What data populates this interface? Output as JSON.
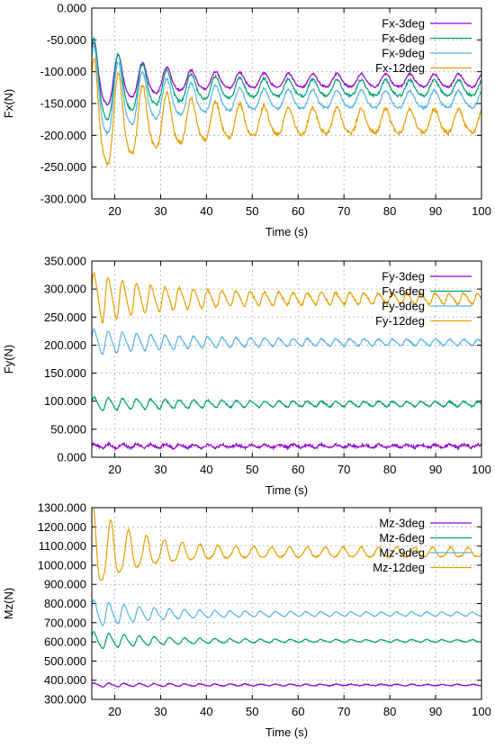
{
  "chart_data": [
    {
      "type": "line",
      "xlabel": "Time (s)",
      "ylabel": "Fx(N)",
      "xlim": [
        15,
        100
      ],
      "ylim": [
        -300,
        0
      ],
      "xticks": [
        20,
        30,
        40,
        50,
        60,
        70,
        80,
        90,
        100
      ],
      "yticks": [
        0,
        -50,
        -100,
        -150,
        -200,
        -250,
        -300
      ],
      "ytick_labels": [
        "0.000",
        "-50.000",
        "-100.000",
        "-150.000",
        "-200.000",
        "-250.000",
        "-300.000"
      ],
      "grid": true,
      "legend_position": "top-right",
      "series": [
        {
          "name": "Fx-3deg",
          "color": "#9400d3",
          "signal": {
            "mean": -115,
            "t0": 15,
            "t_settle": 48,
            "period": 5.3,
            "amp_start": 55,
            "amp_end": 10,
            "decay": 10,
            "phase": 0.9,
            "noise": 1.5
          }
        },
        {
          "name": "Fx-6deg",
          "color": "#009e73",
          "signal": {
            "mean": -127,
            "t0": 15,
            "t_settle": 48,
            "period": 5.3,
            "amp_start": 70,
            "amp_end": 12,
            "decay": 11,
            "phase": 0.9,
            "noise": 2
          }
        },
        {
          "name": "Fx-9deg",
          "color": "#56b4e9",
          "signal": {
            "mean": -145,
            "t0": 15,
            "t_settle": 48,
            "period": 5.3,
            "amp_start": 75,
            "amp_end": 13,
            "decay": 12,
            "phase": 0.9,
            "noise": 2
          }
        },
        {
          "name": "Fx-12deg",
          "color": "#e69f00",
          "signal": {
            "mean": -180,
            "t0": 15,
            "t_settle": 48,
            "period": 5.3,
            "amp_start": 90,
            "amp_end": 18,
            "decay": 14,
            "phase": 0.9,
            "noise": 3
          }
        }
      ]
    },
    {
      "type": "line",
      "xlabel": "Time (s)",
      "ylabel": "Fy(N)",
      "xlim": [
        15,
        100
      ],
      "ylim": [
        0,
        350
      ],
      "xticks": [
        20,
        30,
        40,
        50,
        60,
        70,
        80,
        90,
        100
      ],
      "yticks": [
        350,
        300,
        250,
        200,
        150,
        100,
        50,
        0
      ],
      "ytick_labels": [
        "350.000",
        "300.000",
        "250.000",
        "200.000",
        "150.000",
        "100.000",
        "50.000",
        "0.000"
      ],
      "grid": true,
      "legend_position": "top-right",
      "series": [
        {
          "name": "Fy-3deg",
          "color": "#9400d3",
          "signal": {
            "mean": 20,
            "t0": 15,
            "t_settle": 48,
            "period": 3.1,
            "amp_start": 4,
            "amp_end": 2,
            "decay": 30,
            "phase": 0.3,
            "noise": 2.5
          }
        },
        {
          "name": "Fy-6deg",
          "color": "#009e73",
          "signal": {
            "mean": 95,
            "t0": 15,
            "t_settle": 48,
            "period": 3.1,
            "amp_start": 12,
            "amp_end": 4,
            "decay": 20,
            "phase": 0.3,
            "noise": 1.5
          }
        },
        {
          "name": "Fy-9deg",
          "color": "#56b4e9",
          "signal": {
            "mean": 205,
            "t0": 15,
            "t_settle": 48,
            "period": 3.1,
            "amp_start": 22,
            "amp_end": 5,
            "decay": 18,
            "phase": 0.3,
            "noise": 1.5
          }
        },
        {
          "name": "Fy-12deg",
          "color": "#e69f00",
          "signal": {
            "mean": 283,
            "t0": 15,
            "t_settle": 48,
            "period": 3.1,
            "amp_start": 45,
            "amp_end": 9,
            "decay": 14,
            "phase": 0.3,
            "noise": 2
          }
        }
      ]
    },
    {
      "type": "line",
      "xlabel": "Time (s)",
      "ylabel": "Mz(N)",
      "xlim": [
        15,
        100
      ],
      "ylim": [
        300,
        1300
      ],
      "xticks": [
        20,
        30,
        40,
        50,
        60,
        70,
        80,
        90,
        100
      ],
      "yticks": [
        1300,
        1200,
        1100,
        1000,
        900,
        800,
        700,
        600,
        500,
        400,
        300
      ],
      "ytick_labels": [
        "1300.000",
        "1200.000",
        "1100.000",
        "1000.000",
        "900.000",
        "800.000",
        "700.000",
        "600.000",
        "500.000",
        "400.000",
        "300.000"
      ],
      "grid": true,
      "legend_position": "top-right",
      "series": [
        {
          "name": "Mz-3deg",
          "color": "#9400d3",
          "signal": {
            "mean": 375,
            "t0": 15,
            "t_settle": 48,
            "period": 3.3,
            "amp_start": 10,
            "amp_end": 3,
            "decay": 25,
            "phase": 0.5,
            "noise": 2.5
          }
        },
        {
          "name": "Mz-6deg",
          "color": "#009e73",
          "signal": {
            "mean": 605,
            "t0": 15,
            "t_settle": 48,
            "period": 3.3,
            "amp_start": 45,
            "amp_end": 6,
            "decay": 14,
            "phase": 0.5,
            "noise": 2
          }
        },
        {
          "name": "Mz-9deg",
          "color": "#56b4e9",
          "signal": {
            "mean": 745,
            "t0": 15,
            "t_settle": 48,
            "period": 3.3,
            "amp_start": 70,
            "amp_end": 10,
            "decay": 13,
            "phase": 0.5,
            "noise": 2
          }
        },
        {
          "name": "Mz-12deg",
          "color": "#e69f00",
          "signal": {
            "mean": 1065,
            "t0": 15,
            "t_settle": 48,
            "period": 3.9,
            "amp_start": 215,
            "amp_end": 25,
            "decay": 9,
            "phase": 1.2,
            "noise": 4
          }
        }
      ]
    }
  ]
}
